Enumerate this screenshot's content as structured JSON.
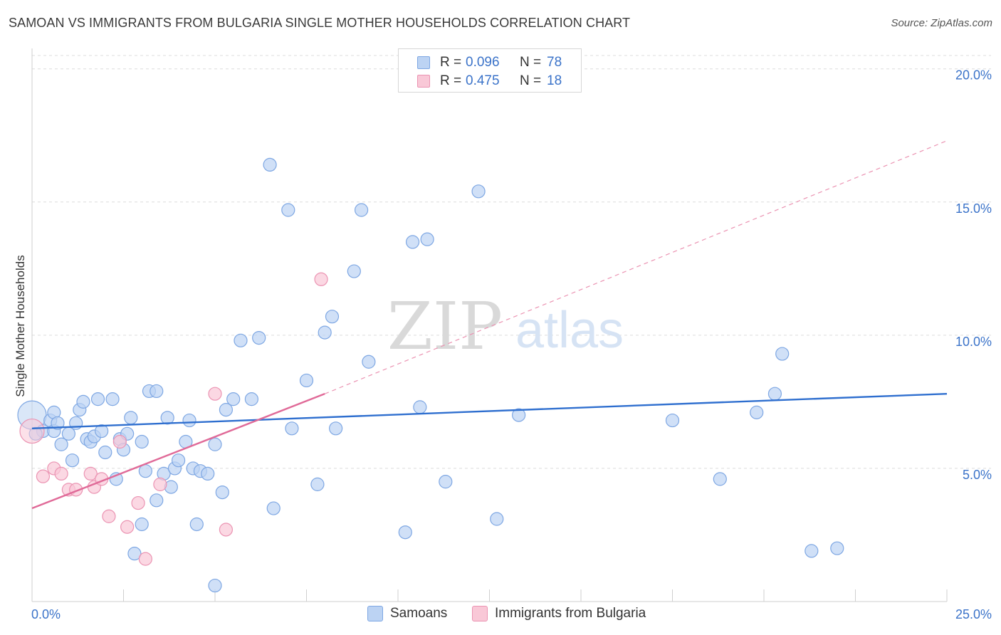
{
  "header": {
    "title": "SAMOAN VS IMMIGRANTS FROM BULGARIA SINGLE MOTHER HOUSEHOLDS CORRELATION CHART",
    "source": "Source: ZipAtlas.com"
  },
  "watermark": {
    "zip": "ZIP",
    "atlas": "atlas"
  },
  "legend": {
    "rows": [
      {
        "r_label": "R =",
        "r_value": "0.096",
        "n_label": "N =",
        "n_value": "78",
        "color": "#bcd3f3"
      },
      {
        "r_label": "R =",
        "r_value": "0.475",
        "n_label": "N =",
        "n_value": "18",
        "color": "#f9c8d7"
      }
    ]
  },
  "bottom_legend": {
    "samoans": "Samoans",
    "bulgaria": "Immigrants from Bulgaria"
  },
  "chart_data": {
    "type": "scatter",
    "title": "SAMOAN VS IMMIGRANTS FROM BULGARIA SINGLE MOTHER HOUSEHOLDS CORRELATION CHART",
    "xlabel": "",
    "ylabel": "Single Mother Households",
    "xlim": [
      0,
      25
    ],
    "ylim": [
      0,
      20.5
    ],
    "x_tick_labels": [
      "0.0%",
      "25.0%"
    ],
    "y_ticks": [
      {
        "value": 5,
        "label": "5.0%"
      },
      {
        "value": 10,
        "label": "10.0%"
      },
      {
        "value": 15,
        "label": "15.0%"
      },
      {
        "value": 20,
        "label": "20.0%"
      }
    ],
    "grid": true,
    "legend_position": "top-center",
    "series": [
      {
        "name": "Samoans",
        "color": "#bcd3f3",
        "stroke": "#7ea7e3",
        "trend": {
          "x": [
            0,
            25
          ],
          "y": [
            6.5,
            7.8
          ],
          "color": "#2f6fcf"
        },
        "points": [
          [
            0.0,
            7.0
          ],
          [
            0.3,
            6.4
          ],
          [
            0.5,
            6.8
          ],
          [
            0.6,
            6.4
          ],
          [
            0.6,
            7.1
          ],
          [
            0.7,
            6.7
          ],
          [
            0.8,
            5.9
          ],
          [
            1.0,
            6.3
          ],
          [
            1.1,
            5.3
          ],
          [
            1.2,
            6.7
          ],
          [
            1.3,
            7.2
          ],
          [
            1.4,
            7.5
          ],
          [
            1.5,
            6.1
          ],
          [
            1.6,
            6.0
          ],
          [
            1.7,
            6.2
          ],
          [
            1.8,
            7.6
          ],
          [
            1.9,
            6.4
          ],
          [
            2.0,
            5.6
          ],
          [
            2.2,
            7.6
          ],
          [
            2.3,
            4.6
          ],
          [
            2.4,
            6.1
          ],
          [
            2.5,
            5.7
          ],
          [
            2.6,
            6.3
          ],
          [
            2.7,
            6.9
          ],
          [
            2.8,
            1.8
          ],
          [
            3.0,
            6.0
          ],
          [
            3.0,
            2.9
          ],
          [
            3.1,
            4.9
          ],
          [
            3.2,
            7.9
          ],
          [
            3.4,
            7.9
          ],
          [
            3.4,
            3.8
          ],
          [
            3.6,
            4.8
          ],
          [
            3.7,
            6.9
          ],
          [
            3.8,
            4.3
          ],
          [
            3.9,
            5.0
          ],
          [
            4.0,
            5.3
          ],
          [
            4.2,
            6.0
          ],
          [
            4.3,
            6.8
          ],
          [
            4.4,
            5.0
          ],
          [
            4.5,
            2.9
          ],
          [
            4.6,
            4.9
          ],
          [
            4.8,
            4.8
          ],
          [
            5.0,
            0.6
          ],
          [
            5.0,
            5.9
          ],
          [
            5.2,
            4.1
          ],
          [
            5.3,
            7.2
          ],
          [
            5.5,
            7.6
          ],
          [
            5.7,
            9.8
          ],
          [
            6.0,
            7.6
          ],
          [
            6.2,
            9.9
          ],
          [
            6.5,
            16.4
          ],
          [
            6.6,
            3.5
          ],
          [
            7.0,
            14.7
          ],
          [
            7.1,
            6.5
          ],
          [
            7.5,
            8.3
          ],
          [
            7.8,
            4.4
          ],
          [
            8.0,
            10.1
          ],
          [
            8.2,
            10.7
          ],
          [
            8.3,
            6.5
          ],
          [
            8.8,
            12.4
          ],
          [
            9.0,
            14.7
          ],
          [
            9.2,
            9.0
          ],
          [
            10.2,
            2.6
          ],
          [
            10.4,
            13.5
          ],
          [
            10.6,
            7.3
          ],
          [
            10.8,
            13.6
          ],
          [
            11.3,
            4.5
          ],
          [
            12.2,
            15.4
          ],
          [
            12.7,
            3.1
          ],
          [
            13.3,
            7.0
          ],
          [
            17.5,
            6.8
          ],
          [
            18.8,
            4.6
          ],
          [
            19.8,
            7.1
          ],
          [
            20.3,
            7.8
          ],
          [
            20.5,
            9.3
          ],
          [
            21.3,
            1.9
          ],
          [
            22.0,
            2.0
          ],
          [
            0.1,
            6.3
          ]
        ]
      },
      {
        "name": "Immigrants from Bulgaria",
        "color": "#f9c8d7",
        "stroke": "#eb93b2",
        "trend": {
          "x": [
            0,
            8.0
          ],
          "y": [
            3.5,
            7.8
          ],
          "color": "#e06a98",
          "extension": {
            "x": [
              8.0,
              25
            ],
            "y": [
              7.8,
              17.3
            ]
          }
        },
        "points": [
          [
            0.0,
            6.4
          ],
          [
            0.3,
            4.7
          ],
          [
            0.6,
            5.0
          ],
          [
            0.8,
            4.8
          ],
          [
            1.0,
            4.2
          ],
          [
            1.2,
            4.2
          ],
          [
            1.6,
            4.8
          ],
          [
            1.7,
            4.3
          ],
          [
            1.9,
            4.6
          ],
          [
            2.1,
            3.2
          ],
          [
            2.4,
            6.0
          ],
          [
            2.6,
            2.8
          ],
          [
            2.9,
            3.7
          ],
          [
            3.1,
            1.6
          ],
          [
            3.5,
            4.4
          ],
          [
            5.0,
            7.8
          ],
          [
            5.3,
            2.7
          ],
          [
            7.9,
            12.1
          ]
        ]
      }
    ]
  }
}
